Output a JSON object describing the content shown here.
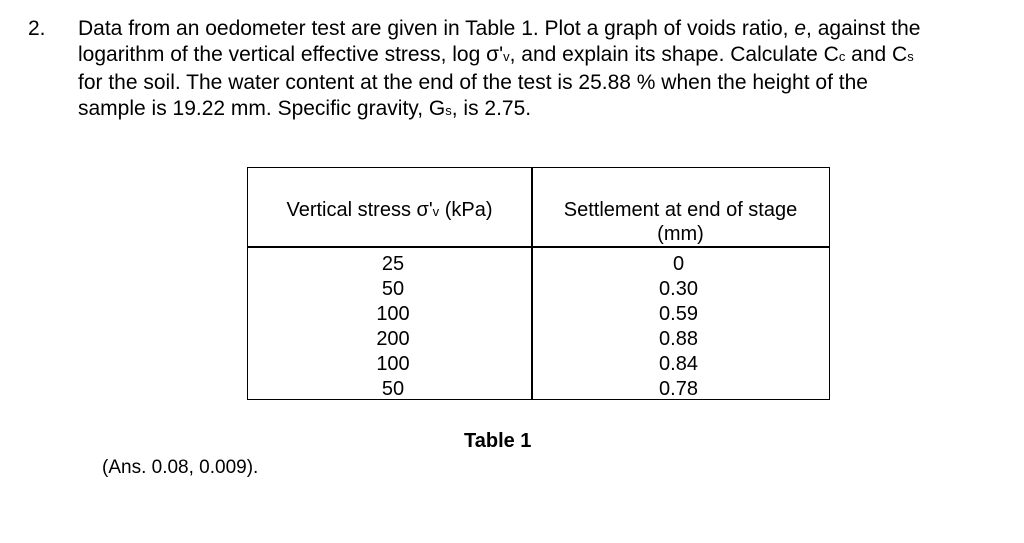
{
  "question": {
    "number": "2.",
    "lines": [
      {
        "pre": "Data from an oedometer test are given in Table 1. Plot a graph of voids ratio, ",
        "em": "e",
        "post": ", against the"
      },
      {
        "pre": "logarithm of the vertical effective stress, log σ'",
        "sub": "v",
        "post": ", and explain its shape. Calculate C",
        "sub2": "c",
        "mid": " and C",
        "sub3": "s"
      },
      {
        "text": "for the soil. The water content at the end of the test is 25.88 % when the height of the"
      },
      {
        "pre": "sample is 19.22 mm. Specific gravity, G",
        "sub": "s",
        "post": ", is 2.75."
      }
    ]
  },
  "table": {
    "header_stress": {
      "pre": "Vertical stress σ'",
      "sub": "v",
      "post": " (kPa)"
    },
    "header_settlement": {
      "line1": "Settlement at end of stage",
      "line2": "(mm)"
    },
    "rows": [
      {
        "stress": "25",
        "settlement": "0"
      },
      {
        "stress": "50",
        "settlement": "0.30"
      },
      {
        "stress": "100",
        "settlement": "0.59"
      },
      {
        "stress": "200",
        "settlement": "0.88"
      },
      {
        "stress": "100",
        "settlement": "0.84"
      },
      {
        "stress": "50",
        "settlement": "0.78"
      }
    ],
    "caption": "Table 1"
  },
  "answer": "(Ans. 0.08, 0.009)."
}
